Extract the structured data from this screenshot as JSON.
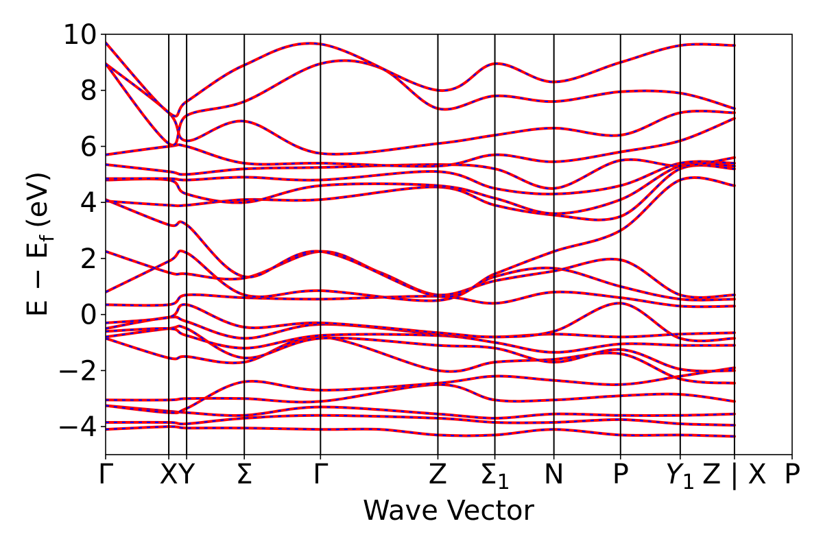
{
  "chart_data": {
    "type": "line",
    "title": "",
    "xlabel": "Wave Vector",
    "ylabel": "E − E",
    "ylabel_sub": "f",
    "ylabel_unit": "(eV)",
    "ylim": [
      -5,
      10
    ],
    "yticks": [
      -4,
      -2,
      0,
      2,
      4,
      6,
      8,
      10
    ],
    "ytick_labels": [
      "−4",
      "−2",
      "0",
      "2",
      "4",
      "6",
      "8",
      "10"
    ],
    "xlim": [
      0,
      10
    ],
    "high_symmetry_points": [
      {
        "label": "Γ",
        "sub": "",
        "italic": false,
        "x": 0
      },
      {
        "label": "X",
        "sub": "",
        "italic": false,
        "x": 0.92
      },
      {
        "label": "Y",
        "sub": "",
        "italic": false,
        "x": 1.18
      },
      {
        "label": "Σ",
        "sub": "",
        "italic": false,
        "x": 2.02
      },
      {
        "label": "Γ",
        "sub": "",
        "italic": false,
        "x": 3.13
      },
      {
        "label": "Z",
        "sub": "",
        "italic": false,
        "x": 4.84
      },
      {
        "label": "Σ",
        "sub": "1",
        "italic": false,
        "x": 5.67
      },
      {
        "label": "N",
        "sub": "",
        "italic": false,
        "x": 6.53
      },
      {
        "label": "P",
        "sub": "",
        "italic": false,
        "x": 7.5
      },
      {
        "label": "Y",
        "sub": "1",
        "italic": true,
        "x": 8.37
      },
      {
        "label": "Z | X",
        "sub": "",
        "italic": false,
        "x": 9.16
      },
      {
        "label": "P",
        "sub": "",
        "italic": false,
        "x": 10
      }
    ],
    "series_style": {
      "reference": {
        "color": "#ff0000",
        "style": "solid"
      },
      "overlay": {
        "color": "#0000ff",
        "style": "dashed"
      }
    },
    "bands": [
      {
        "x": [
          0,
          0.92,
          1.18,
          2.02,
          3.13,
          4.0,
          4.84,
          5.67,
          6.53,
          7.5,
          8.37,
          9.16
        ],
        "y": [
          -4.1,
          -4.0,
          -4.05,
          -4.05,
          -4.1,
          -4.1,
          -4.3,
          -4.3,
          -4.1,
          -4.3,
          -4.3,
          -4.35
        ]
      },
      {
        "x": [
          0,
          0.92,
          1.18,
          2.02,
          3.13,
          4.84,
          5.67,
          6.53,
          7.5,
          8.37,
          9.16
        ],
        "y": [
          -3.85,
          -3.85,
          -3.9,
          -3.7,
          -3.6,
          -3.7,
          -3.85,
          -3.85,
          -3.75,
          -3.9,
          -3.95
        ]
      },
      {
        "x": [
          0,
          0.92,
          1.18,
          2.02,
          3.13,
          4.84,
          5.67,
          6.53,
          7.5,
          8.37,
          9.16
        ],
        "y": [
          -3.25,
          -3.45,
          -3.5,
          -3.6,
          -3.3,
          -3.55,
          -3.7,
          -3.55,
          -3.6,
          -3.6,
          -3.55
        ]
      },
      {
        "x": [
          0,
          0.92,
          1.18,
          2.02,
          3.13,
          4.84,
          5.67,
          6.53,
          7.5,
          8.37,
          9.16
        ],
        "y": [
          -3.05,
          -3.05,
          -3.0,
          -3.0,
          -3.1,
          -2.5,
          -3.05,
          -3.05,
          -2.9,
          -2.85,
          -3.1
        ]
      },
      {
        "x": [
          0,
          0.92,
          1.18,
          2.02,
          3.13,
          4.84,
          5.67,
          6.53,
          7.5,
          8.37,
          9.16
        ],
        "y": [
          -3.25,
          -3.5,
          -3.35,
          -2.4,
          -2.7,
          -2.45,
          -2.2,
          -2.35,
          -2.5,
          -2.2,
          -1.9
        ]
      },
      {
        "x": [
          0,
          0.92,
          1.18,
          2.02,
          3.13,
          4.84,
          5.67,
          6.53,
          7.5,
          8.37,
          9.16
        ],
        "y": [
          -0.85,
          -1.55,
          -1.5,
          -1.7,
          -0.8,
          -2.0,
          -1.7,
          -1.6,
          -1.4,
          -2.3,
          -2.45
        ]
      },
      {
        "x": [
          0,
          0.92,
          1.18,
          2.02,
          3.13,
          4.84,
          5.67,
          6.53,
          7.5,
          8.37,
          9.16
        ],
        "y": [
          -0.8,
          -0.5,
          -0.5,
          -1.55,
          -0.85,
          -1.1,
          -1.2,
          -1.7,
          -1.25,
          -1.95,
          -2.0
        ]
      },
      {
        "x": [
          0,
          0.92,
          1.18,
          2.02,
          3.13,
          4.84,
          5.67,
          6.53,
          7.5,
          8.37,
          9.16
        ],
        "y": [
          -0.6,
          -0.5,
          -0.75,
          -1.2,
          -0.75,
          -0.75,
          -1.0,
          -1.35,
          -1.05,
          -1.1,
          -1.1
        ]
      },
      {
        "x": [
          0,
          0.92,
          1.18,
          2.02,
          3.13,
          4.84,
          5.67,
          6.53,
          7.5,
          8.37,
          9.16
        ],
        "y": [
          -0.5,
          -0.1,
          -0.25,
          -0.85,
          -0.35,
          -0.7,
          -0.8,
          -0.7,
          -0.8,
          -0.7,
          -0.65
        ]
      },
      {
        "x": [
          0,
          0.92,
          1.18,
          2.02,
          3.13,
          4.84,
          5.67,
          6.53,
          7.5,
          8.37,
          9.16
        ],
        "y": [
          -0.3,
          -0.1,
          0.35,
          -0.45,
          -0.3,
          -0.65,
          -0.8,
          -0.6,
          0.4,
          -0.85,
          -0.85
        ]
      },
      {
        "x": [
          0,
          0.92,
          1.18,
          2.02,
          3.13,
          4.84,
          5.67,
          6.53,
          7.5,
          8.37,
          9.16
        ],
        "y": [
          0.35,
          0.35,
          0.7,
          0.6,
          0.55,
          0.65,
          0.4,
          0.8,
          0.6,
          0.3,
          0.3
        ]
      },
      {
        "x": [
          0,
          0.92,
          1.18,
          2.02,
          3.13,
          4.84,
          5.67,
          6.53,
          7.5,
          8.37,
          9.16
        ],
        "y": [
          0.8,
          1.9,
          2.2,
          0.7,
          0.85,
          0.5,
          1.35,
          1.65,
          1.0,
          0.55,
          0.55
        ]
      },
      {
        "x": [
          0,
          0.92,
          1.18,
          2.02,
          3.13,
          4.0,
          4.84,
          5.67,
          6.53,
          7.5,
          8.37,
          9.16
        ],
        "y": [
          2.25,
          1.5,
          1.45,
          1.3,
          2.25,
          1.5,
          0.7,
          1.2,
          1.55,
          1.95,
          0.7,
          0.7
        ]
      },
      {
        "x": [
          0,
          0.92,
          1.18,
          2.02,
          3.13,
          4.84,
          5.67,
          6.53,
          7.5,
          8.37,
          9.16
        ],
        "y": [
          4.1,
          3.2,
          3.2,
          1.35,
          2.25,
          0.65,
          1.45,
          2.25,
          3.0,
          4.8,
          4.6
        ]
      },
      {
        "x": [
          0,
          0.92,
          1.18,
          2.02,
          3.13,
          4.84,
          5.67,
          6.53,
          7.5,
          8.37,
          9.16
        ],
        "y": [
          4.05,
          3.9,
          3.9,
          4.1,
          4.1,
          4.55,
          3.9,
          3.55,
          3.5,
          5.2,
          5.2
        ]
      },
      {
        "x": [
          0,
          0.92,
          1.18,
          2.02,
          3.13,
          4.84,
          5.67,
          6.53,
          7.5,
          8.37,
          9.16
        ],
        "y": [
          4.8,
          4.8,
          4.3,
          4.0,
          4.6,
          4.6,
          4.15,
          3.6,
          4.1,
          5.3,
          5.3
        ]
      },
      {
        "x": [
          0,
          0.92,
          1.18,
          2.02,
          3.13,
          4.84,
          5.67,
          6.53,
          7.5,
          8.37,
          9.16
        ],
        "y": [
          4.85,
          4.85,
          4.8,
          4.9,
          4.8,
          5.1,
          4.5,
          4.3,
          4.6,
          5.4,
          5.4
        ]
      },
      {
        "x": [
          0,
          0.92,
          1.18,
          2.02,
          3.13,
          4.84,
          5.67,
          6.53,
          7.5,
          8.37,
          9.16
        ],
        "y": [
          5.35,
          5.1,
          5.0,
          5.2,
          5.25,
          5.35,
          5.2,
          4.5,
          5.5,
          5.3,
          5.6
        ]
      },
      {
        "x": [
          0,
          0.92,
          1.18,
          2.02,
          3.13,
          4.84,
          5.67,
          6.53,
          7.5,
          8.37,
          9.16
        ],
        "y": [
          5.7,
          6.0,
          6.0,
          5.4,
          5.4,
          5.3,
          5.7,
          5.45,
          5.8,
          6.2,
          7.0
        ]
      },
      {
        "x": [
          0,
          0.92,
          1.18,
          2.02,
          3.13,
          4.84,
          5.67,
          6.53,
          7.5,
          8.37,
          9.16
        ],
        "y": [
          8.95,
          7.2,
          6.2,
          6.9,
          5.75,
          6.1,
          6.4,
          6.65,
          6.4,
          7.2,
          7.2
        ]
      },
      {
        "x": [
          0,
          0.92,
          1.18,
          2.02,
          3.13,
          4.0,
          4.84,
          5.67,
          6.53,
          7.5,
          8.37,
          9.16
        ],
        "y": [
          8.95,
          6.1,
          7.1,
          7.6,
          8.95,
          8.8,
          7.35,
          7.8,
          7.6,
          7.95,
          7.9,
          7.35
        ]
      },
      {
        "x": [
          0,
          0.92,
          1.18,
          2.02,
          3.13,
          4.84,
          5.67,
          6.53,
          7.5,
          8.37,
          9.16
        ],
        "y": [
          9.7,
          7.2,
          7.6,
          8.9,
          9.65,
          8.0,
          8.95,
          8.3,
          9.0,
          9.6,
          9.6
        ]
      }
    ]
  }
}
